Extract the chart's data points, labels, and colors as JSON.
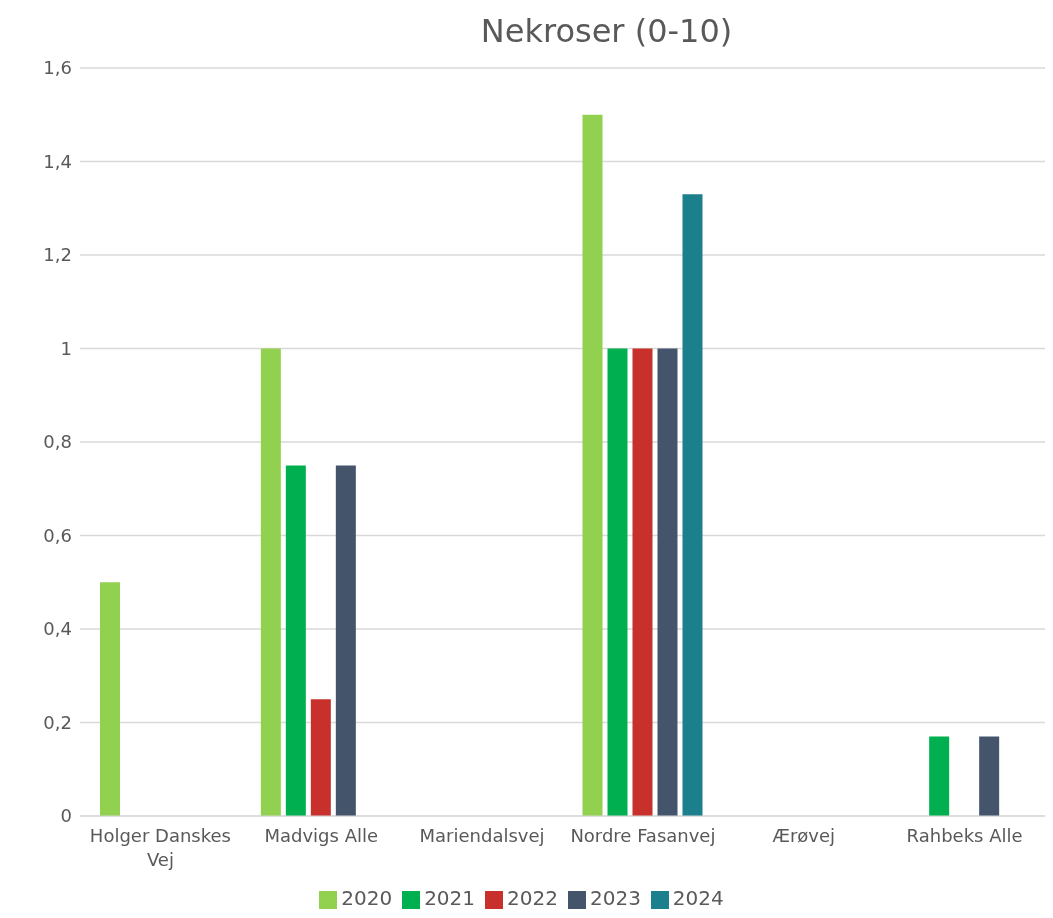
{
  "chart_data": {
    "type": "bar",
    "title": "Nekroser (0-10)",
    "categories": [
      "Holger Danskes Vej",
      "Madvigs Alle",
      "Mariendalsvej",
      "Nordre Fasanvej",
      "Ærøvej",
      "Rahbeks Alle"
    ],
    "series": [
      {
        "name": "2020",
        "color": "#92d050",
        "values": [
          0.5,
          1,
          0,
          1.5,
          0,
          0
        ]
      },
      {
        "name": "2021",
        "color": "#00b050",
        "values": [
          0,
          0.75,
          0,
          1,
          0,
          0.17
        ]
      },
      {
        "name": "2022",
        "color": "#c8302b",
        "values": [
          0,
          0.25,
          0,
          1,
          0,
          0
        ]
      },
      {
        "name": "2023",
        "color": "#44546a",
        "values": [
          0,
          0.75,
          0,
          1,
          0,
          0.17
        ]
      },
      {
        "name": "2024",
        "color": "#1b7f8c",
        "values": [
          0,
          0,
          0,
          1.33,
          0,
          0
        ]
      }
    ],
    "ylim": [
      0,
      1.6
    ],
    "yticks": [
      0,
      {
        "value": 0.2,
        "label": "0,2"
      },
      {
        "value": 0.4,
        "label": "0,4"
      },
      {
        "value": 0.6,
        "label": "0,6"
      },
      {
        "value": 0.8,
        "label": "0,8"
      },
      1,
      {
        "value": 1.2,
        "label": "1,2"
      },
      {
        "value": 1.4,
        "label": "1,4"
      },
      {
        "value": 1.6,
        "label": "1,6"
      }
    ],
    "grid": "y",
    "legend": "bottom"
  }
}
